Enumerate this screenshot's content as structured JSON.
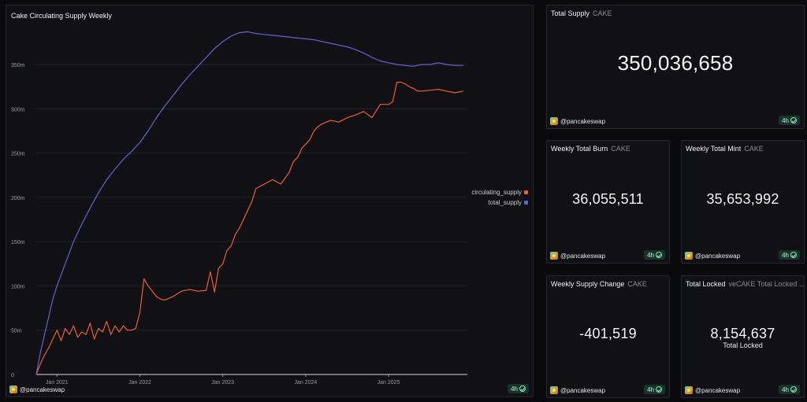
{
  "chart_card": {
    "title": "Cake Circulating Supply Weekly",
    "author": "@pancakeswap",
    "refresh": "4h"
  },
  "chart_data": {
    "type": "line",
    "title": "Cake Circulating Supply Weekly",
    "xlabel": "",
    "ylabel": "",
    "xlim": [
      2020.75,
      2025.95
    ],
    "ylim": [
      0,
      390
    ],
    "x_ticks": [
      2021,
      2022,
      2023,
      2024,
      2025
    ],
    "x_tick_labels": [
      "Jan 2021",
      "Jan 2022",
      "Jan 2023",
      "Jan 2024",
      "Jan 2025"
    ],
    "y_ticks": [
      0,
      50,
      100,
      150,
      200,
      250,
      300,
      350
    ],
    "y_tick_labels": [
      "0",
      "50m",
      "100m",
      "150m",
      "200m",
      "250m",
      "300m",
      "350m"
    ],
    "grid": true,
    "legend_position": "right",
    "series": [
      {
        "name": "circulating_supply",
        "color": "#e8603c",
        "x": [
          2020.75,
          2020.8,
          2020.85,
          2020.9,
          2020.95,
          2021.0,
          2021.05,
          2021.1,
          2021.15,
          2021.2,
          2021.25,
          2021.3,
          2021.35,
          2021.4,
          2021.45,
          2021.5,
          2021.55,
          2021.6,
          2021.65,
          2021.7,
          2021.75,
          2021.8,
          2021.85,
          2021.9,
          2021.95,
          2022.0,
          2022.05,
          2022.1,
          2022.15,
          2022.2,
          2022.25,
          2022.3,
          2022.35,
          2022.4,
          2022.5,
          2022.6,
          2022.7,
          2022.8,
          2022.85,
          2022.9,
          2022.95,
          2023.0,
          2023.05,
          2023.1,
          2023.12,
          2023.15,
          2023.2,
          2023.25,
          2023.3,
          2023.35,
          2023.4,
          2023.5,
          2023.6,
          2023.7,
          2023.8,
          2023.85,
          2023.9,
          2023.93,
          2023.95,
          2024.0,
          2024.05,
          2024.1,
          2024.15,
          2024.2,
          2024.3,
          2024.4,
          2024.5,
          2024.6,
          2024.7,
          2024.8,
          2024.9,
          2025.0,
          2025.05,
          2025.1,
          2025.15,
          2025.2,
          2025.25,
          2025.3,
          2025.35,
          2025.4,
          2025.5,
          2025.6,
          2025.7,
          2025.8,
          2025.9
        ],
        "values": [
          0,
          12,
          22,
          30,
          40,
          50,
          38,
          52,
          45,
          55,
          42,
          48,
          45,
          58,
          40,
          52,
          48,
          60,
          45,
          55,
          48,
          55,
          50,
          50,
          52,
          70,
          108,
          100,
          94,
          88,
          85,
          84,
          86,
          88,
          94,
          96,
          94,
          95,
          116,
          93,
          120,
          125,
          140,
          145,
          150,
          158,
          165,
          175,
          185,
          195,
          210,
          215,
          220,
          215,
          228,
          240,
          245,
          250,
          255,
          260,
          265,
          275,
          280,
          283,
          287,
          285,
          290,
          293,
          297,
          290,
          305,
          305,
          308,
          330,
          330,
          328,
          325,
          323,
          320,
          320,
          321,
          322,
          320,
          318,
          320
        ]
      },
      {
        "name": "total_supply",
        "color": "#6a5fd0",
        "x": [
          2020.75,
          2020.8,
          2020.85,
          2020.9,
          2020.95,
          2021.0,
          2021.1,
          2021.2,
          2021.3,
          2021.4,
          2021.5,
          2021.6,
          2021.7,
          2021.8,
          2021.9,
          2022.0,
          2022.1,
          2022.2,
          2022.3,
          2022.4,
          2022.5,
          2022.6,
          2022.7,
          2022.8,
          2022.9,
          2023.0,
          2023.1,
          2023.2,
          2023.3,
          2023.4,
          2023.5,
          2023.6,
          2023.7,
          2023.8,
          2023.9,
          2024.0,
          2024.1,
          2024.2,
          2024.3,
          2024.4,
          2024.5,
          2024.6,
          2024.7,
          2024.8,
          2024.9,
          2025.0,
          2025.1,
          2025.2,
          2025.3,
          2025.4,
          2025.5,
          2025.6,
          2025.7,
          2025.8,
          2025.9
        ],
        "values": [
          0,
          25,
          45,
          65,
          85,
          100,
          125,
          150,
          170,
          188,
          205,
          220,
          232,
          243,
          252,
          262,
          275,
          290,
          303,
          315,
          327,
          338,
          348,
          358,
          368,
          376,
          382,
          386,
          387,
          385,
          384,
          383,
          382,
          381,
          380,
          379,
          378,
          376,
          374,
          372,
          370,
          367,
          363,
          358,
          354,
          352,
          350,
          349,
          348,
          350,
          350,
          352,
          350,
          349,
          349
        ]
      }
    ]
  },
  "legend": [
    {
      "name": "circulating_supply",
      "color": "#e8603c"
    },
    {
      "name": "total_supply",
      "color": "#6a5fd0"
    }
  ],
  "cards": {
    "total_supply": {
      "title": "Total Supply",
      "unit": "CAKE",
      "value": "350,036,658",
      "author": "@pancakeswap",
      "refresh": "4h"
    },
    "weekly_burn": {
      "title": "Weekly Total Burn",
      "unit": "CAKE",
      "value": "36,055,511",
      "author": "@pancakeswap",
      "refresh": "4h"
    },
    "weekly_mint": {
      "title": "Weekly Total Mint",
      "unit": "CAKE",
      "value": "35,653,992",
      "author": "@pancakeswap",
      "refresh": "4h"
    },
    "weekly_change": {
      "title": "Weekly Supply Change",
      "unit": "CAKE",
      "value": "-401,519",
      "author": "@pancakeswap",
      "refresh": "4h"
    },
    "total_locked": {
      "title": "Total Locked",
      "unit": "veCAKE Total Locked ...",
      "value": "8,154,637",
      "sublabel": "Total Locked",
      "author": "@pancakeswap",
      "refresh": "4h"
    }
  }
}
